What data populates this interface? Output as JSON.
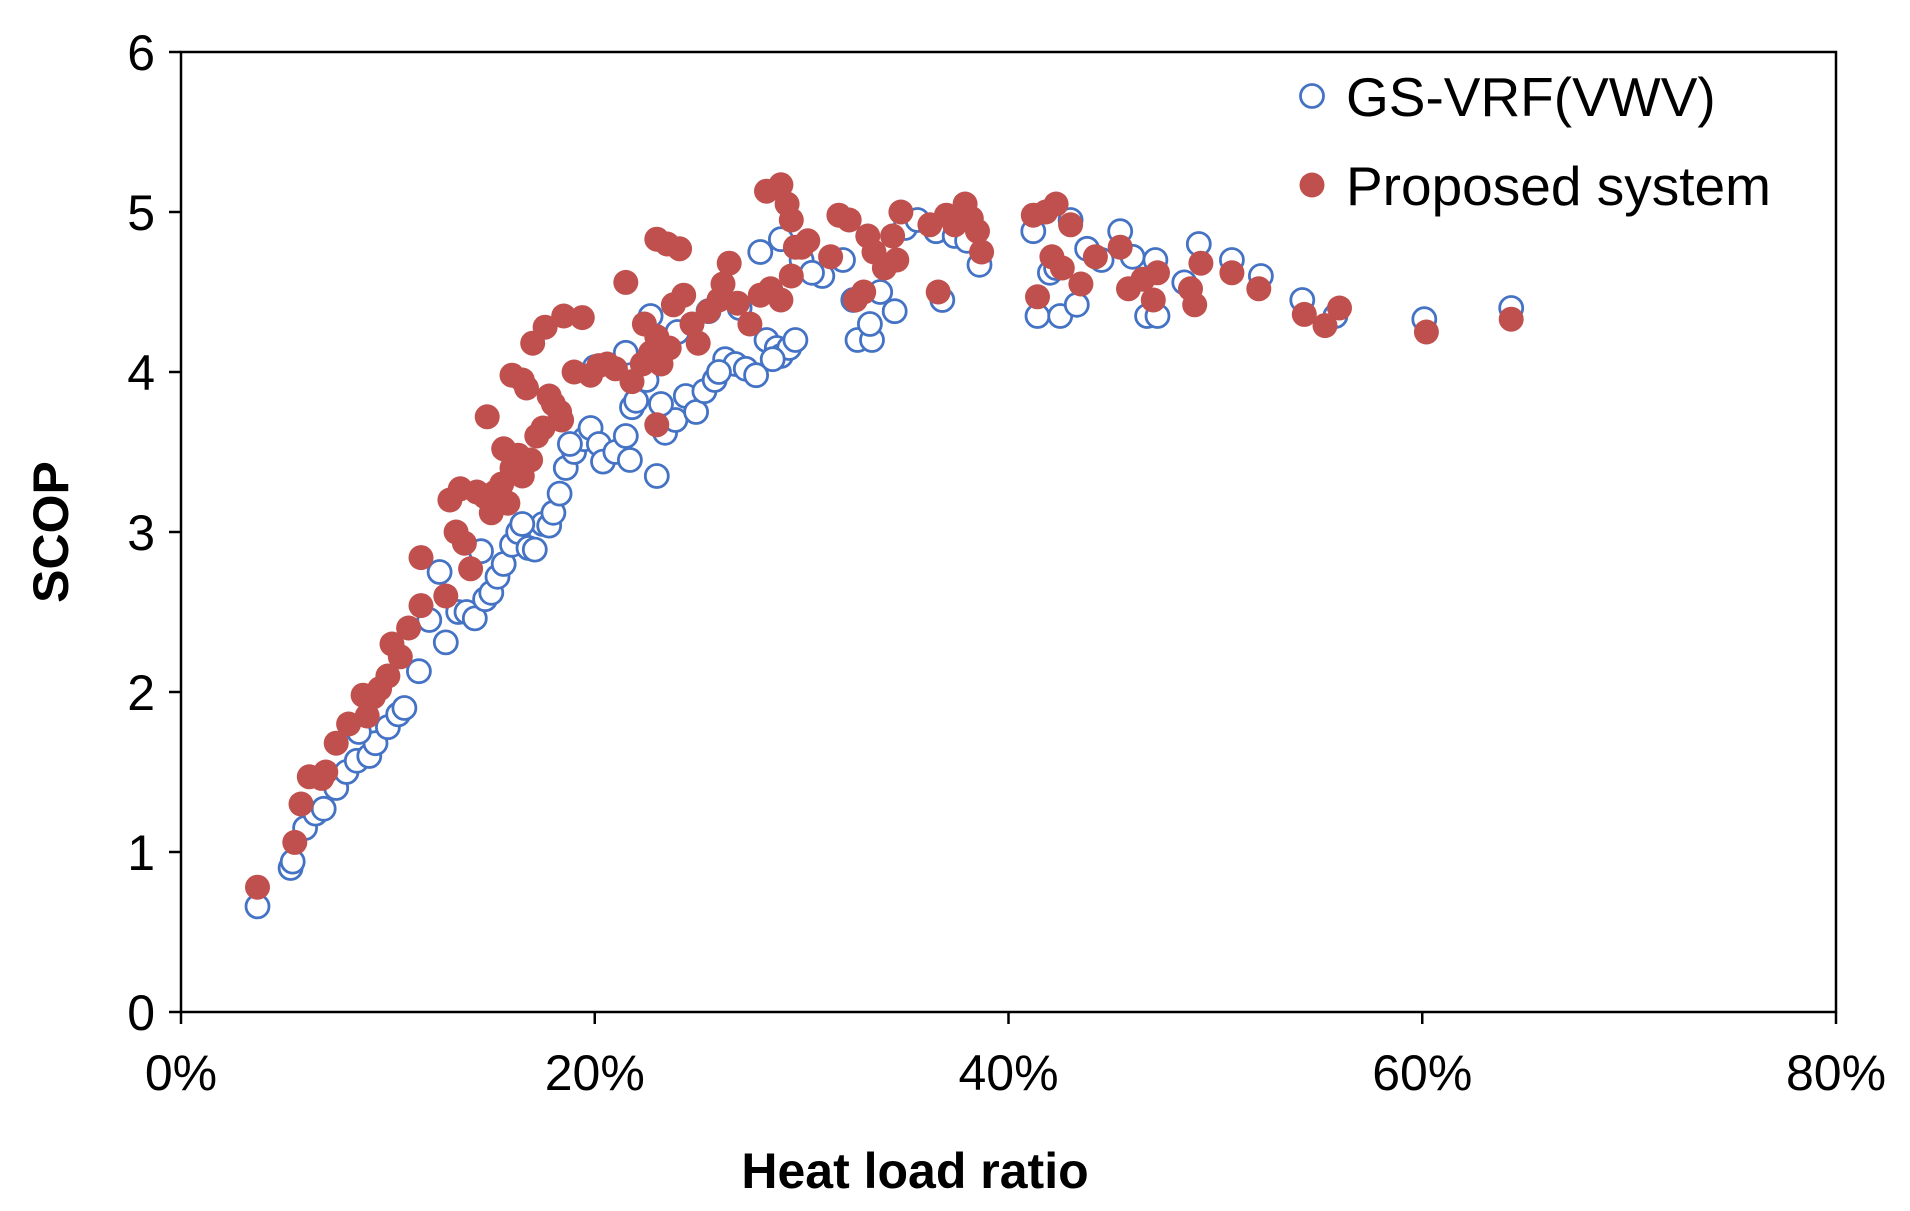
{
  "chart_data": {
    "type": "scatter",
    "title": "",
    "xlabel": "Heat load ratio",
    "ylabel": "SCOP",
    "xlim": [
      0,
      80
    ],
    "ylim": [
      0,
      6
    ],
    "x_ticks": [
      0,
      20,
      40,
      60,
      80
    ],
    "x_tick_labels": [
      "0%",
      "20%",
      "40%",
      "60%",
      "80%"
    ],
    "y_ticks": [
      0,
      1,
      2,
      3,
      4,
      5,
      6
    ],
    "y_tick_labels": [
      "0",
      "1",
      "2",
      "3",
      "4",
      "5",
      "6"
    ],
    "grid": false,
    "legend_position": "top-right",
    "series": [
      {
        "name": "GS-VRF(VWV)",
        "marker": "open-circle",
        "color": "#4472C4",
        "points": [
          [
            3.7,
            0.66
          ],
          [
            5.3,
            0.9
          ],
          [
            5.4,
            0.94
          ],
          [
            6.0,
            1.15
          ],
          [
            6.5,
            1.24
          ],
          [
            6.9,
            1.27
          ],
          [
            7.5,
            1.4
          ],
          [
            8.0,
            1.5
          ],
          [
            8.5,
            1.57
          ],
          [
            9.1,
            1.6
          ],
          [
            9.4,
            1.68
          ],
          [
            10.0,
            1.78
          ],
          [
            10.5,
            1.86
          ],
          [
            10.8,
            1.9
          ],
          [
            11.5,
            2.13
          ],
          [
            12.0,
            2.45
          ],
          [
            12.8,
            2.31
          ],
          [
            13.4,
            2.5
          ],
          [
            13.8,
            2.5
          ],
          [
            14.2,
            2.46
          ],
          [
            14.7,
            2.58
          ],
          [
            15.0,
            2.62
          ],
          [
            15.3,
            2.72
          ],
          [
            15.6,
            2.8
          ],
          [
            16.0,
            2.92
          ],
          [
            16.3,
            3.0
          ],
          [
            16.8,
            2.9
          ],
          [
            17.1,
            2.89
          ],
          [
            17.5,
            3.05
          ],
          [
            17.8,
            3.04
          ],
          [
            18.0,
            3.12
          ],
          [
            18.3,
            3.24
          ],
          [
            18.6,
            3.4
          ],
          [
            19.0,
            3.5
          ],
          [
            19.5,
            3.58
          ],
          [
            19.8,
            3.65
          ],
          [
            20.2,
            3.55
          ],
          [
            20.4,
            3.44
          ],
          [
            21.0,
            3.5
          ],
          [
            21.7,
            3.45
          ],
          [
            21.5,
            3.6
          ],
          [
            21.8,
            3.78
          ],
          [
            22.0,
            3.82
          ],
          [
            22.5,
            3.95
          ],
          [
            23.0,
            3.35
          ],
          [
            23.4,
            3.62
          ],
          [
            23.9,
            3.7
          ],
          [
            24.4,
            3.85
          ],
          [
            24.9,
            3.75
          ],
          [
            25.3,
            3.88
          ],
          [
            25.8,
            3.95
          ],
          [
            26.3,
            4.08
          ],
          [
            26.8,
            4.05
          ],
          [
            27.3,
            4.02
          ],
          [
            27.8,
            3.98
          ],
          [
            28.3,
            4.2
          ],
          [
            28.8,
            4.15
          ],
          [
            29.0,
            4.1
          ],
          [
            29.4,
            4.15
          ],
          [
            29.7,
            4.2
          ],
          [
            20.0,
            4.03
          ],
          [
            21.5,
            4.12
          ],
          [
            22.7,
            4.35
          ],
          [
            24.0,
            4.25
          ],
          [
            25.5,
            4.38
          ],
          [
            27.0,
            4.4
          ],
          [
            28.0,
            4.75
          ],
          [
            29.0,
            4.83
          ],
          [
            30.0,
            4.7
          ],
          [
            31.0,
            4.6
          ],
          [
            32.0,
            4.7
          ],
          [
            32.5,
            4.45
          ],
          [
            32.7,
            4.2
          ],
          [
            33.4,
            4.2
          ],
          [
            33.3,
            4.3
          ],
          [
            33.8,
            4.5
          ],
          [
            34.5,
            4.38
          ],
          [
            35.0,
            4.9
          ],
          [
            36.5,
            4.88
          ],
          [
            36.8,
            4.45
          ],
          [
            37.4,
            4.85
          ],
          [
            38.0,
            4.82
          ],
          [
            38.6,
            4.67
          ],
          [
            41.2,
            4.88
          ],
          [
            41.4,
            4.35
          ],
          [
            42.0,
            4.62
          ],
          [
            42.5,
            4.35
          ],
          [
            43.0,
            4.95
          ],
          [
            43.3,
            4.42
          ],
          [
            43.8,
            4.77
          ],
          [
            44.5,
            4.7
          ],
          [
            45.4,
            4.88
          ],
          [
            46.0,
            4.72
          ],
          [
            46.7,
            4.35
          ],
          [
            47.2,
            4.35
          ],
          [
            47.1,
            4.7
          ],
          [
            48.5,
            4.56
          ],
          [
            49.2,
            4.8
          ],
          [
            50.8,
            4.7
          ],
          [
            52.2,
            4.6
          ],
          [
            54.2,
            4.45
          ],
          [
            55.8,
            4.35
          ],
          [
            60.1,
            4.33
          ],
          [
            64.3,
            4.4
          ],
          [
            8.6,
            1.75
          ],
          [
            12.5,
            2.75
          ],
          [
            14.5,
            2.88
          ],
          [
            16.5,
            3.05
          ],
          [
            18.8,
            3.55
          ],
          [
            23.2,
            3.8
          ],
          [
            26.0,
            4.0
          ],
          [
            28.6,
            4.08
          ],
          [
            30.5,
            4.62
          ],
          [
            35.6,
            4.95
          ],
          [
            42.3,
            4.65
          ]
        ]
      },
      {
        "name": "Proposed system",
        "marker": "filled-circle",
        "color": "#C0504D",
        "points": [
          [
            3.7,
            0.78
          ],
          [
            5.5,
            1.06
          ],
          [
            5.8,
            1.3
          ],
          [
            6.2,
            1.47
          ],
          [
            6.8,
            1.46
          ],
          [
            7.0,
            1.5
          ],
          [
            7.5,
            1.68
          ],
          [
            8.1,
            1.8
          ],
          [
            8.8,
            1.98
          ],
          [
            9.3,
            1.97
          ],
          [
            9.6,
            2.02
          ],
          [
            10.0,
            2.1
          ],
          [
            10.2,
            2.3
          ],
          [
            10.6,
            2.22
          ],
          [
            11.0,
            2.4
          ],
          [
            11.6,
            2.54
          ],
          [
            11.6,
            2.84
          ],
          [
            12.8,
            2.6
          ],
          [
            13.0,
            3.2
          ],
          [
            13.5,
            3.27
          ],
          [
            13.7,
            2.93
          ],
          [
            14.0,
            2.77
          ],
          [
            14.3,
            3.25
          ],
          [
            14.7,
            3.22
          ],
          [
            14.8,
            3.72
          ],
          [
            15.0,
            3.12
          ],
          [
            15.2,
            3.25
          ],
          [
            15.5,
            3.3
          ],
          [
            15.8,
            3.18
          ],
          [
            16.0,
            3.4
          ],
          [
            16.3,
            3.48
          ],
          [
            16.5,
            3.35
          ],
          [
            16.7,
            3.9
          ],
          [
            16.9,
            3.45
          ],
          [
            17.2,
            3.6
          ],
          [
            17.5,
            3.65
          ],
          [
            17.8,
            3.85
          ],
          [
            18.0,
            3.8
          ],
          [
            18.3,
            3.75
          ],
          [
            18.4,
            3.7
          ],
          [
            16.0,
            3.98
          ],
          [
            16.5,
            3.95
          ],
          [
            17.0,
            4.18
          ],
          [
            17.6,
            4.28
          ],
          [
            18.5,
            4.35
          ],
          [
            19.4,
            4.34
          ],
          [
            19.8,
            3.98
          ],
          [
            20.2,
            4.04
          ],
          [
            20.6,
            4.05
          ],
          [
            21.0,
            4.02
          ],
          [
            21.5,
            4.56
          ],
          [
            21.8,
            3.94
          ],
          [
            22.3,
            4.05
          ],
          [
            22.7,
            4.12
          ],
          [
            23.0,
            4.22
          ],
          [
            23.0,
            3.67
          ],
          [
            23.2,
            4.05
          ],
          [
            23.6,
            4.15
          ],
          [
            23.8,
            4.42
          ],
          [
            24.3,
            4.48
          ],
          [
            24.7,
            4.3
          ],
          [
            25.0,
            4.18
          ],
          [
            25.5,
            4.38
          ],
          [
            26.0,
            4.45
          ],
          [
            26.5,
            4.68
          ],
          [
            26.9,
            4.43
          ],
          [
            27.5,
            4.3
          ],
          [
            28.0,
            4.48
          ],
          [
            28.5,
            4.52
          ],
          [
            29.0,
            4.45
          ],
          [
            29.5,
            4.6
          ],
          [
            29.7,
            4.78
          ],
          [
            30.3,
            4.82
          ],
          [
            31.4,
            4.72
          ],
          [
            31.8,
            4.98
          ],
          [
            32.3,
            4.95
          ],
          [
            32.6,
            4.45
          ],
          [
            33.0,
            4.5
          ],
          [
            33.5,
            4.75
          ],
          [
            34.0,
            4.65
          ],
          [
            34.4,
            4.85
          ],
          [
            34.6,
            4.7
          ],
          [
            34.8,
            5.0
          ],
          [
            36.6,
            4.5
          ],
          [
            37.0,
            4.98
          ],
          [
            37.4,
            4.92
          ],
          [
            37.9,
            5.05
          ],
          [
            38.5,
            4.88
          ],
          [
            38.7,
            4.75
          ],
          [
            23.0,
            4.83
          ],
          [
            23.5,
            4.8
          ],
          [
            24.1,
            4.77
          ],
          [
            28.3,
            5.13
          ],
          [
            29.0,
            5.17
          ],
          [
            29.3,
            5.05
          ],
          [
            29.5,
            4.95
          ],
          [
            41.2,
            4.98
          ],
          [
            41.4,
            4.47
          ],
          [
            41.8,
            5.0
          ],
          [
            42.3,
            5.05
          ],
          [
            42.6,
            4.65
          ],
          [
            43.0,
            4.92
          ],
          [
            43.5,
            4.55
          ],
          [
            44.2,
            4.72
          ],
          [
            45.4,
            4.78
          ],
          [
            45.8,
            4.52
          ],
          [
            46.5,
            4.58
          ],
          [
            47.0,
            4.45
          ],
          [
            47.2,
            4.62
          ],
          [
            48.8,
            4.52
          ],
          [
            49.0,
            4.42
          ],
          [
            49.3,
            4.68
          ],
          [
            50.8,
            4.62
          ],
          [
            52.1,
            4.52
          ],
          [
            54.3,
            4.36
          ],
          [
            55.3,
            4.29
          ],
          [
            56.0,
            4.4
          ],
          [
            60.2,
            4.25
          ],
          [
            64.3,
            4.33
          ],
          [
            9.0,
            1.85
          ],
          [
            13.3,
            3.0
          ],
          [
            15.6,
            3.52
          ],
          [
            19.0,
            4.0
          ],
          [
            22.4,
            4.3
          ],
          [
            26.2,
            4.55
          ],
          [
            30.0,
            4.78
          ],
          [
            33.2,
            4.85
          ],
          [
            36.2,
            4.92
          ],
          [
            38.2,
            4.96
          ],
          [
            42.1,
            4.72
          ]
        ]
      }
    ]
  }
}
